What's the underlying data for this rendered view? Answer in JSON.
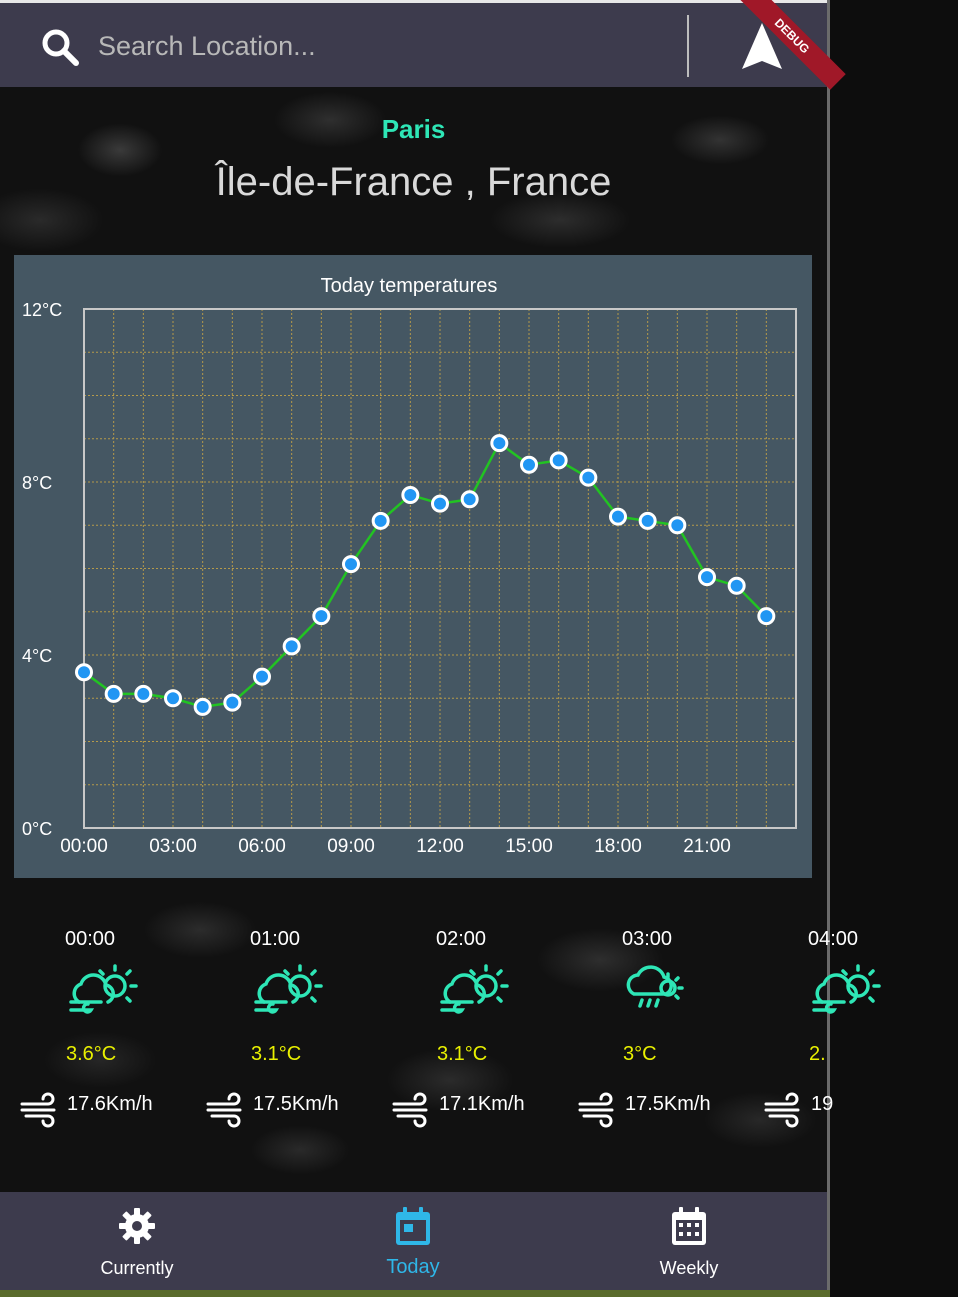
{
  "search": {
    "placeholder": "Search Location..."
  },
  "debug_label": "DEBUG",
  "location": {
    "city": "Paris",
    "region": "Île-de-France , France"
  },
  "colors": {
    "accent": "#2ee6b6",
    "temp": "#e8f000",
    "active_tab": "#2fb7e8",
    "line": "#22c322",
    "point": "#2196f3"
  },
  "chart_data": {
    "type": "line",
    "title": "Today temperatures",
    "xlabel": "",
    "ylabel": "",
    "x": [
      "00:00",
      "01:00",
      "02:00",
      "03:00",
      "04:00",
      "05:00",
      "06:00",
      "07:00",
      "08:00",
      "09:00",
      "10:00",
      "11:00",
      "12:00",
      "13:00",
      "14:00",
      "15:00",
      "16:00",
      "17:00",
      "18:00",
      "19:00",
      "20:00",
      "21:00",
      "22:00",
      "23:00"
    ],
    "values": [
      3.6,
      3.1,
      3.1,
      3.0,
      2.8,
      2.9,
      3.5,
      4.2,
      4.9,
      6.1,
      7.1,
      7.7,
      7.5,
      7.6,
      8.9,
      8.4,
      8.5,
      8.1,
      7.2,
      7.1,
      7.0,
      5.8,
      5.6,
      4.9
    ],
    "ylim": [
      0,
      12
    ],
    "y_ticks": [
      "0°C",
      "4°C",
      "8°C",
      "12°C"
    ],
    "x_ticks": [
      "00:00",
      "03:00",
      "06:00",
      "09:00",
      "12:00",
      "15:00",
      "18:00",
      "21:00"
    ],
    "grid": true
  },
  "hourly": [
    {
      "time": "00:00",
      "icon": "cloud-sun-wind-icon",
      "temp": "3.6°C",
      "wind": "17.6Km/h"
    },
    {
      "time": "01:00",
      "icon": "cloud-sun-wind-icon",
      "temp": "3.1°C",
      "wind": "17.5Km/h"
    },
    {
      "time": "02:00",
      "icon": "cloud-sun-wind-icon",
      "temp": "3.1°C",
      "wind": "17.1Km/h"
    },
    {
      "time": "03:00",
      "icon": "cloud-sun-rain-icon",
      "temp": "3°C",
      "wind": "17.5Km/h"
    },
    {
      "time": "04:00",
      "icon": "cloud-sun-wind-icon",
      "temp": "2.",
      "wind": "19"
    }
  ],
  "tabs": [
    {
      "label": "Currently",
      "icon": "gear-icon"
    },
    {
      "label": "Today",
      "icon": "calendar-today-icon"
    },
    {
      "label": "Weekly",
      "icon": "calendar-grid-icon"
    }
  ]
}
